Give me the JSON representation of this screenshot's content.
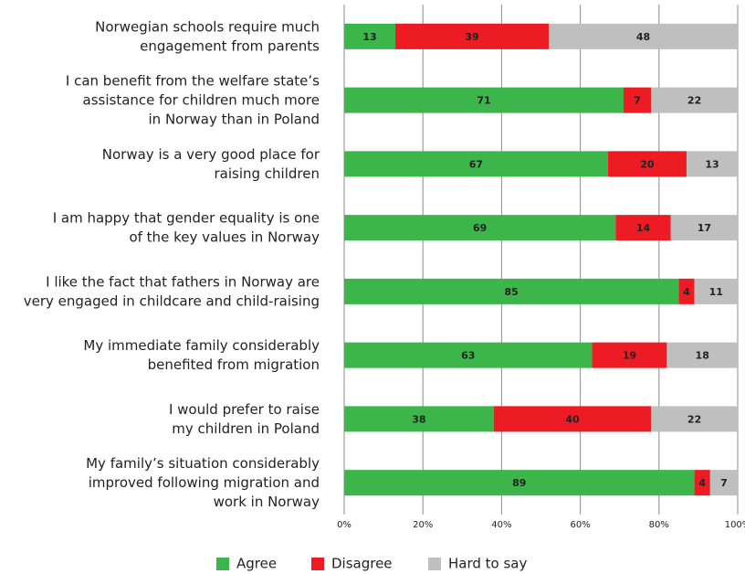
{
  "chart_data": {
    "type": "stacked-barh",
    "categories": [
      "Norwegian schools require much\nengagement from parents",
      "I can benefit from the welfare state’s\nassistance for children much more\nin Norway than in Poland",
      "Norway is a very good place for\nraising children",
      "I am happy that gender equality is one\nof the key values in Norway",
      "I like the fact that fathers in Norway are\nvery engaged in childcare and child-raising",
      "My immediate family considerably\nbenefited from migration",
      "I would prefer to raise\nmy children in Poland",
      "My family’s situation considerably\nimproved following migration and\nwork in Norway"
    ],
    "series": [
      {
        "name": "Agree",
        "color": "#3cb54a",
        "values": [
          13,
          71,
          67,
          69,
          85,
          63,
          38,
          89
        ]
      },
      {
        "name": "Disagree",
        "color": "#ed1c24",
        "values": [
          39,
          7,
          20,
          14,
          4,
          19,
          40,
          4
        ]
      },
      {
        "name": "Hard to say",
        "color": "#bfbfbf",
        "values": [
          48,
          22,
          13,
          17,
          11,
          18,
          22,
          7
        ]
      }
    ],
    "xlim": [
      0,
      100
    ],
    "xticks": [
      {
        "value": 0,
        "label": "0%"
      },
      {
        "value": 20,
        "label": "20%"
      },
      {
        "value": 40,
        "label": "40%"
      },
      {
        "value": 60,
        "label": "60%"
      },
      {
        "value": 80,
        "label": "80%"
      },
      {
        "value": 100,
        "label": "100%"
      }
    ],
    "grid": true,
    "legend": "bottom"
  }
}
